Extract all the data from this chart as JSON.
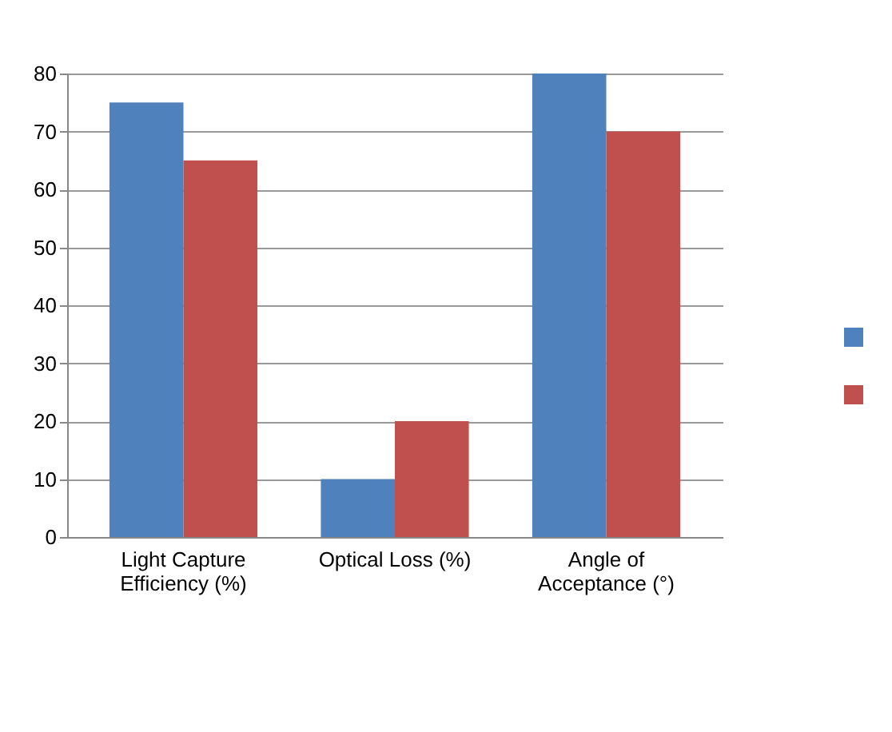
{
  "chart_data": {
    "type": "bar",
    "categories": [
      "Light Capture Efficiency (%)",
      "Optical Loss (%)",
      "Angle of Acceptance (°)"
    ],
    "series": [
      {
        "color": "#4f81bd",
        "values": [
          75,
          10,
          80
        ]
      },
      {
        "color": "#c0504d",
        "values": [
          65,
          20,
          70
        ]
      }
    ],
    "ylim": [
      0,
      80
    ],
    "yticks": [
      0,
      10,
      20,
      30,
      40,
      50,
      60,
      70,
      80
    ],
    "grid": "y"
  }
}
